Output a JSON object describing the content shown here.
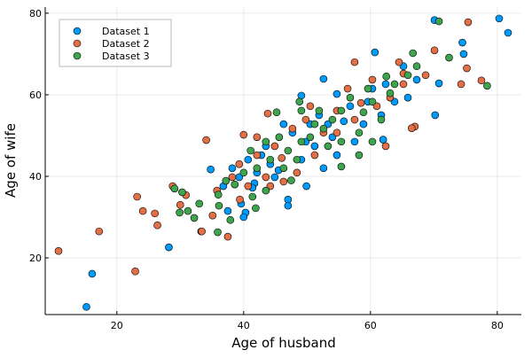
{
  "chart_data": {
    "type": "scatter",
    "title": "",
    "xlabel": "Age of husband",
    "ylabel": "Age of wife",
    "xlim": [
      8.7,
      83.8
    ],
    "ylim": [
      6.1,
      81.5
    ],
    "xticks": [
      20,
      40,
      60,
      80
    ],
    "yticks": [
      20,
      40,
      60,
      80
    ],
    "grid": true,
    "legend_position": "top-left",
    "series": [
      {
        "name": "Dataset 1",
        "color": "#009AFA",
        "points": [
          [
            15.2,
            8.0
          ],
          [
            16.1,
            16.1
          ],
          [
            28.2,
            22.6
          ],
          [
            33.3,
            26.5
          ],
          [
            34.8,
            41.7
          ],
          [
            80.3,
            78.7
          ],
          [
            81.7,
            75.2
          ],
          [
            70.1,
            78.3
          ],
          [
            74.5,
            72.8
          ],
          [
            74.7,
            70.0
          ],
          [
            70.8,
            62.8
          ],
          [
            60.7,
            70.4
          ],
          [
            70.2,
            55.0
          ],
          [
            52.6,
            63.9
          ],
          [
            54.7,
            60.2
          ],
          [
            49.1,
            59.8
          ],
          [
            46.3,
            52.8
          ],
          [
            47.7,
            50.7
          ],
          [
            49.8,
            48.5
          ],
          [
            43.5,
            47.4
          ],
          [
            40.7,
            44.1
          ],
          [
            38.2,
            42.0
          ],
          [
            36.8,
            37.6
          ],
          [
            39.6,
            33.3
          ],
          [
            40.3,
            31.1
          ],
          [
            41.7,
            38.3
          ],
          [
            44.9,
            39.8
          ],
          [
            47.0,
            34.3
          ],
          [
            49.9,
            37.6
          ],
          [
            52.6,
            42.0
          ],
          [
            54.7,
            45.2
          ],
          [
            57.5,
            48.5
          ],
          [
            58.9,
            52.8
          ],
          [
            61.7,
            55.0
          ],
          [
            63.8,
            58.3
          ],
          [
            65.9,
            59.3
          ],
          [
            67.3,
            63.7
          ],
          [
            65.2,
            67.0
          ],
          [
            62.4,
            62.6
          ],
          [
            56.8,
            57.2
          ],
          [
            51.9,
            55.0
          ],
          [
            50.5,
            52.8
          ],
          [
            44.2,
            43.0
          ],
          [
            42.1,
            40.9
          ],
          [
            42.8,
            45.2
          ],
          [
            41.4,
            37.2
          ],
          [
            39.3,
            39.8
          ],
          [
            49.1,
            44.1
          ],
          [
            51.2,
            47.4
          ],
          [
            54.0,
            49.6
          ],
          [
            53.3,
            52.8
          ],
          [
            59.6,
            58.3
          ],
          [
            60.3,
            61.5
          ],
          [
            40.0,
            30.0
          ],
          [
            47.0,
            32.8
          ],
          [
            37.5,
            31.5
          ],
          [
            45.5,
            41.5
          ],
          [
            55.8,
            53.5
          ],
          [
            62.0,
            49.0
          ]
        ]
      },
      {
        "name": "Dataset 2",
        "color": "#E26F46",
        "points": [
          [
            10.8,
            21.7
          ],
          [
            17.2,
            26.5
          ],
          [
            22.9,
            16.7
          ],
          [
            23.2,
            35.0
          ],
          [
            24.1,
            31.5
          ],
          [
            26.4,
            28.0
          ],
          [
            26.0,
            30.9
          ],
          [
            33.4,
            26.5
          ],
          [
            37.5,
            25.2
          ],
          [
            34.1,
            48.9
          ],
          [
            40.0,
            50.2
          ],
          [
            43.8,
            55.4
          ],
          [
            39.4,
            34.3
          ],
          [
            35.1,
            30.4
          ],
          [
            28.8,
            37.6
          ],
          [
            30.9,
            35.4
          ],
          [
            75.2,
            66.5
          ],
          [
            75.4,
            77.8
          ],
          [
            74.3,
            62.6
          ],
          [
            77.5,
            63.5
          ],
          [
            67.0,
            52.2
          ],
          [
            66.5,
            51.8
          ],
          [
            62.4,
            47.4
          ],
          [
            70.1,
            70.9
          ],
          [
            65.2,
            65.2
          ],
          [
            64.5,
            68.0
          ],
          [
            57.5,
            68.0
          ],
          [
            60.3,
            63.7
          ],
          [
            56.4,
            61.5
          ],
          [
            54.7,
            56.1
          ],
          [
            50.5,
            57.2
          ],
          [
            47.7,
            51.7
          ],
          [
            44.9,
            47.4
          ],
          [
            42.1,
            45.2
          ],
          [
            46.3,
            38.7
          ],
          [
            44.2,
            37.6
          ],
          [
            40.7,
            37.6
          ],
          [
            39.3,
            43.0
          ],
          [
            52.6,
            50.7
          ],
          [
            49.8,
            53.9
          ],
          [
            57.5,
            53.9
          ],
          [
            63.1,
            59.3
          ],
          [
            61.0,
            57.2
          ],
          [
            65.2,
            62.6
          ],
          [
            68.7,
            64.8
          ],
          [
            48.4,
            40.9
          ],
          [
            51.2,
            45.2
          ],
          [
            42.1,
            49.6
          ],
          [
            38.2,
            39.8
          ],
          [
            35.8,
            36.5
          ],
          [
            43.5,
            39.8
          ],
          [
            54.7,
            50.7
          ],
          [
            30.0,
            33.0
          ],
          [
            46.0,
            44.5
          ],
          [
            58.5,
            58.0
          ]
        ]
      },
      {
        "name": "Dataset 3",
        "color": "#3EA44E",
        "points": [
          [
            29.1,
            37.0
          ],
          [
            30.3,
            36.1
          ],
          [
            31.2,
            31.5
          ],
          [
            29.9,
            31.1
          ],
          [
            33.0,
            33.3
          ],
          [
            36.1,
            32.8
          ],
          [
            37.9,
            29.3
          ],
          [
            35.9,
            26.3
          ],
          [
            32.2,
            29.8
          ],
          [
            37.2,
            38.9
          ],
          [
            41.1,
            46.3
          ],
          [
            41.9,
            32.2
          ],
          [
            45.2,
            55.7
          ],
          [
            48.8,
            58.3
          ],
          [
            78.4,
            62.2
          ],
          [
            70.8,
            78.0
          ],
          [
            72.4,
            69.1
          ],
          [
            66.7,
            70.2
          ],
          [
            67.3,
            67.0
          ],
          [
            63.1,
            60.4
          ],
          [
            60.3,
            58.3
          ],
          [
            59.6,
            61.5
          ],
          [
            56.8,
            59.3
          ],
          [
            54.0,
            53.9
          ],
          [
            51.2,
            52.8
          ],
          [
            49.1,
            48.5
          ],
          [
            47.0,
            46.3
          ],
          [
            44.2,
            44.1
          ],
          [
            42.1,
            42.0
          ],
          [
            40.0,
            40.9
          ],
          [
            38.6,
            38.0
          ],
          [
            41.4,
            35.0
          ],
          [
            43.5,
            36.5
          ],
          [
            46.3,
            42.0
          ],
          [
            48.4,
            44.1
          ],
          [
            50.5,
            49.6
          ],
          [
            53.3,
            47.4
          ],
          [
            55.4,
            48.5
          ],
          [
            58.2,
            50.7
          ],
          [
            60.3,
            48.5
          ],
          [
            58.9,
            55.7
          ],
          [
            61.7,
            53.9
          ],
          [
            63.8,
            62.6
          ],
          [
            65.9,
            64.8
          ],
          [
            55.4,
            56.1
          ],
          [
            51.9,
            56.1
          ],
          [
            58.2,
            45.2
          ],
          [
            55.4,
            42.4
          ],
          [
            52.6,
            51.7
          ],
          [
            45.6,
            49.6
          ],
          [
            43.5,
            48.5
          ],
          [
            49.1,
            56.1
          ],
          [
            36.0,
            35.5
          ],
          [
            47.5,
            39.0
          ],
          [
            62.5,
            64.5
          ]
        ]
      }
    ]
  }
}
